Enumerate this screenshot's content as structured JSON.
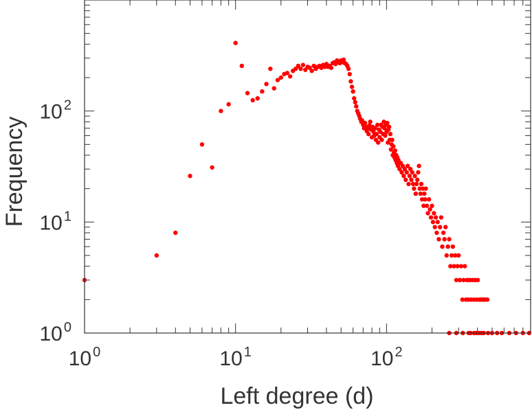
{
  "chart_data": {
    "type": "scatter",
    "title": "",
    "xlabel": "Left degree (d)",
    "ylabel": "Frequency",
    "x_scale": "log",
    "y_scale": "log",
    "xlim": [
      1,
      900
    ],
    "ylim": [
      1,
      1000
    ],
    "grid": false,
    "legend": "none",
    "marker_color": "#ff0000",
    "x_ticks": [
      {
        "value": 1,
        "base": "10",
        "exp": "0"
      },
      {
        "value": 10,
        "base": "10",
        "exp": "1"
      },
      {
        "value": 100,
        "base": "10",
        "exp": "2"
      }
    ],
    "y_ticks": [
      {
        "value": 1,
        "base": "10",
        "exp": "0"
      },
      {
        "value": 10,
        "base": "10",
        "exp": "1"
      },
      {
        "value": 100,
        "base": "10",
        "exp": "2"
      }
    ],
    "points": [
      [
        1,
        3
      ],
      [
        3,
        5
      ],
      [
        4,
        8
      ],
      [
        5,
        26
      ],
      [
        6,
        50
      ],
      [
        7,
        31
      ],
      [
        8,
        100
      ],
      [
        9,
        115
      ],
      [
        10,
        410
      ],
      [
        11,
        255
      ],
      [
        12,
        145
      ],
      [
        13,
        125
      ],
      [
        14,
        130
      ],
      [
        15,
        150
      ],
      [
        16,
        175
      ],
      [
        17,
        240
      ],
      [
        18,
        160
      ],
      [
        19,
        190
      ],
      [
        20,
        200
      ],
      [
        21,
        215
      ],
      [
        22,
        220
      ],
      [
        23,
        205
      ],
      [
        24,
        230
      ],
      [
        25,
        240
      ],
      [
        26,
        255
      ],
      [
        27,
        240
      ],
      [
        28,
        260
      ],
      [
        29,
        235
      ],
      [
        30,
        250
      ],
      [
        31,
        245
      ],
      [
        32,
        230
      ],
      [
        33,
        255
      ],
      [
        34,
        240
      ],
      [
        35,
        250
      ],
      [
        36,
        255
      ],
      [
        37,
        245
      ],
      [
        38,
        260
      ],
      [
        39,
        250
      ],
      [
        40,
        265
      ],
      [
        41,
        250
      ],
      [
        42,
        255
      ],
      [
        43,
        245
      ],
      [
        44,
        270
      ],
      [
        45,
        275
      ],
      [
        46,
        265
      ],
      [
        47,
        285
      ],
      [
        48,
        280
      ],
      [
        49,
        270
      ],
      [
        50,
        285
      ],
      [
        51,
        275
      ],
      [
        52,
        290
      ],
      [
        53,
        270
      ],
      [
        54,
        265
      ],
      [
        55,
        255
      ],
      [
        56,
        240
      ],
      [
        57,
        215
      ],
      [
        58,
        185
      ],
      [
        59,
        165
      ],
      [
        60,
        150
      ],
      [
        61,
        130
      ],
      [
        62,
        120
      ],
      [
        63,
        110
      ],
      [
        64,
        100
      ],
      [
        65,
        95
      ],
      [
        66,
        90
      ],
      [
        67,
        85
      ],
      [
        68,
        80
      ],
      [
        69,
        82
      ],
      [
        70,
        75
      ],
      [
        71,
        70
      ],
      [
        72,
        78
      ],
      [
        73,
        72
      ],
      [
        74,
        66
      ],
      [
        75,
        70
      ],
      [
        76,
        62
      ],
      [
        77,
        74
      ],
      [
        78,
        80
      ],
      [
        79,
        68
      ],
      [
        80,
        58
      ],
      [
        81,
        72
      ],
      [
        82,
        65
      ],
      [
        83,
        60
      ],
      [
        84,
        70
      ],
      [
        85,
        55
      ],
      [
        86,
        62
      ],
      [
        87,
        75
      ],
      [
        88,
        52
      ],
      [
        89,
        68
      ],
      [
        90,
        58
      ],
      [
        91,
        65
      ],
      [
        92,
        75
      ],
      [
        93,
        55
      ],
      [
        94,
        72
      ],
      [
        95,
        62
      ],
      [
        96,
        80
      ],
      [
        97,
        70
      ],
      [
        98,
        60
      ],
      [
        99,
        75
      ],
      [
        100,
        65
      ],
      [
        101,
        78
      ],
      [
        102,
        52
      ],
      [
        103,
        68
      ],
      [
        104,
        72
      ],
      [
        105,
        55
      ],
      [
        106,
        62
      ],
      [
        107,
        45
      ],
      [
        108,
        50
      ],
      [
        109,
        55
      ],
      [
        110,
        40
      ],
      [
        111,
        48
      ],
      [
        112,
        42
      ],
      [
        113,
        38
      ],
      [
        114,
        44
      ],
      [
        115,
        36
      ],
      [
        116,
        40
      ],
      [
        117,
        34
      ],
      [
        118,
        38
      ],
      [
        119,
        32
      ],
      [
        120,
        36
      ],
      [
        122,
        30
      ],
      [
        124,
        34
      ],
      [
        126,
        28
      ],
      [
        128,
        32
      ],
      [
        130,
        26
      ],
      [
        132,
        30
      ],
      [
        134,
        24
      ],
      [
        136,
        28
      ],
      [
        138,
        32
      ],
      [
        140,
        22
      ],
      [
        142,
        26
      ],
      [
        144,
        30
      ],
      [
        146,
        24
      ],
      [
        148,
        28
      ],
      [
        150,
        22
      ],
      [
        152,
        20
      ],
      [
        154,
        26
      ],
      [
        156,
        18
      ],
      [
        158,
        22
      ],
      [
        160,
        24
      ],
      [
        162,
        28
      ],
      [
        164,
        32
      ],
      [
        166,
        20
      ],
      [
        168,
        18
      ],
      [
        170,
        22
      ],
      [
        172,
        16
      ],
      [
        174,
        20
      ],
      [
        176,
        14
      ],
      [
        178,
        18
      ],
      [
        180,
        16
      ],
      [
        182,
        20
      ],
      [
        185,
        14
      ],
      [
        188,
        12
      ],
      [
        191,
        16
      ],
      [
        194,
        13
      ],
      [
        197,
        11
      ],
      [
        200,
        14
      ],
      [
        203,
        10
      ],
      [
        206,
        12
      ],
      [
        209,
        9
      ],
      [
        212,
        11
      ],
      [
        215,
        8
      ],
      [
        218,
        10
      ],
      [
        222,
        7
      ],
      [
        226,
        9
      ],
      [
        230,
        11
      ],
      [
        234,
        6
      ],
      [
        238,
        8
      ],
      [
        242,
        7
      ],
      [
        246,
        9
      ],
      [
        250,
        5
      ],
      [
        255,
        6
      ],
      [
        260,
        7
      ],
      [
        265,
        4
      ],
      [
        270,
        5
      ],
      [
        275,
        6
      ],
      [
        280,
        4
      ],
      [
        285,
        5
      ],
      [
        290,
        3
      ],
      [
        295,
        4
      ],
      [
        300,
        5
      ],
      [
        306,
        3
      ],
      [
        312,
        4
      ],
      [
        318,
        2
      ],
      [
        324,
        3
      ],
      [
        330,
        4
      ],
      [
        336,
        2
      ],
      [
        342,
        3
      ],
      [
        348,
        2
      ],
      [
        355,
        3
      ],
      [
        362,
        2
      ],
      [
        370,
        3
      ],
      [
        378,
        2
      ],
      [
        386,
        3
      ],
      [
        394,
        2
      ],
      [
        402,
        3
      ],
      [
        410,
        2
      ],
      [
        420,
        2
      ],
      [
        430,
        2
      ],
      [
        440,
        2
      ],
      [
        450,
        2
      ],
      [
        260,
        1
      ],
      [
        290,
        1
      ],
      [
        320,
        1
      ],
      [
        350,
        1
      ],
      [
        380,
        1
      ],
      [
        410,
        1
      ],
      [
        440,
        1
      ],
      [
        470,
        1
      ],
      [
        500,
        1
      ],
      [
        540,
        1
      ],
      [
        580,
        1
      ],
      [
        650,
        1
      ],
      [
        720,
        1
      ],
      [
        800,
        1
      ],
      [
        880,
        1
      ],
      [
        440,
        2
      ],
      [
        465,
        2
      ],
      [
        360,
        1
      ],
      [
        395,
        1
      ],
      [
        425,
        1
      ]
    ]
  }
}
